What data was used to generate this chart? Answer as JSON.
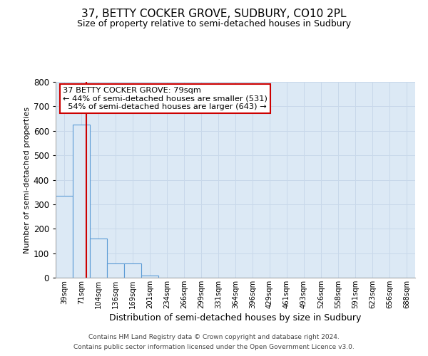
{
  "title": "37, BETTY COCKER GROVE, SUDBURY, CO10 2PL",
  "subtitle": "Size of property relative to semi-detached houses in Sudbury",
  "xlabel": "Distribution of semi-detached houses by size in Sudbury",
  "ylabel": "Number of semi-detached properties",
  "bar_labels": [
    "39sqm",
    "71sqm",
    "104sqm",
    "136sqm",
    "169sqm",
    "201sqm",
    "234sqm",
    "266sqm",
    "299sqm",
    "331sqm",
    "364sqm",
    "396sqm",
    "429sqm",
    "461sqm",
    "493sqm",
    "526sqm",
    "558sqm",
    "591sqm",
    "623sqm",
    "656sqm",
    "688sqm"
  ],
  "bar_values": [
    335,
    625,
    160,
    58,
    58,
    10,
    0,
    0,
    0,
    0,
    0,
    0,
    0,
    0,
    0,
    0,
    0,
    0,
    0,
    0,
    0
  ],
  "bar_color": "#dce9f5",
  "bar_edge_color": "#5b9bd5",
  "ylim": [
    0,
    800
  ],
  "yticks": [
    0,
    100,
    200,
    300,
    400,
    500,
    600,
    700,
    800
  ],
  "property_line_x": 1,
  "property_line_color": "#cc0000",
  "annotation_line1": "37 BETTY COCKER GROVE: 79sqm",
  "annotation_line2": "← 44% of semi-detached houses are smaller (531)",
  "annotation_line3": "  54% of semi-detached houses are larger (643) →",
  "annotation_box_color": "#ffffff",
  "annotation_box_edge": "#cc0000",
  "footer1": "Contains HM Land Registry data © Crown copyright and database right 2024.",
  "footer2": "Contains public sector information licensed under the Open Government Licence v3.0.",
  "grid_color": "#c8d8ea",
  "background_color": "#dce9f5",
  "title_fontsize": 11,
  "subtitle_fontsize": 9,
  "xlabel_fontsize": 9,
  "ylabel_fontsize": 8
}
